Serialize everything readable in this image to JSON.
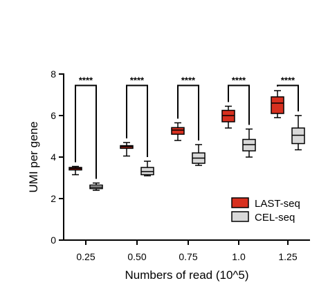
{
  "chart_data": {
    "type": "box",
    "title": "",
    "xlabel": "Numbers of read (10^5)",
    "ylabel": "UMI per gene",
    "categories": [
      "0.25",
      "0.50",
      "0.75",
      "1.0",
      "1.25"
    ],
    "ylim": [
      0,
      8
    ],
    "yticks": [
      "0",
      "2",
      "4",
      "6",
      "8"
    ],
    "grid": false,
    "legend_position": "bottom-right",
    "series": [
      {
        "name": "LAST-seq",
        "color": "#d7301f",
        "boxes": [
          {
            "min": 3.15,
            "q1": 3.38,
            "median": 3.45,
            "q3": 3.5,
            "max": 3.55
          },
          {
            "min": 4.05,
            "q1": 4.42,
            "median": 4.5,
            "q3": 4.55,
            "max": 4.7
          },
          {
            "min": 4.8,
            "q1": 5.1,
            "median": 5.3,
            "q3": 5.42,
            "max": 5.65
          },
          {
            "min": 5.4,
            "q1": 5.7,
            "median": 6.0,
            "q3": 6.25,
            "max": 6.45
          },
          {
            "min": 5.9,
            "q1": 6.1,
            "median": 6.6,
            "q3": 6.9,
            "max": 7.2
          }
        ]
      },
      {
        "name": "CEL-seq",
        "color": "#d9d9d9",
        "boxes": [
          {
            "min": 2.4,
            "q1": 2.48,
            "median": 2.55,
            "q3": 2.65,
            "max": 2.75
          },
          {
            "min": 3.1,
            "q1": 3.15,
            "median": 3.3,
            "q3": 3.5,
            "max": 3.8
          },
          {
            "min": 3.6,
            "q1": 3.7,
            "median": 3.95,
            "q3": 4.2,
            "max": 4.6
          },
          {
            "min": 4.0,
            "q1": 4.3,
            "median": 4.6,
            "q3": 4.85,
            "max": 5.35
          },
          {
            "min": 4.35,
            "q1": 4.65,
            "median": 5.05,
            "q3": 5.4,
            "max": 6.0
          }
        ]
      }
    ],
    "annotations": [
      "****",
      "****",
      "****",
      "****",
      "****"
    ]
  }
}
